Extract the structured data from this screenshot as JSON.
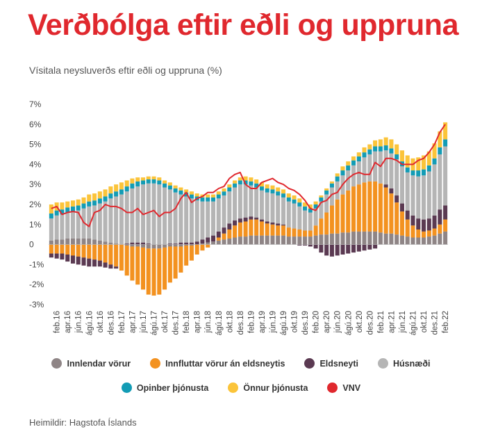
{
  "title": "Verðbólga eftir eðli og uppruna",
  "subtitle": "Vísitala neysluverðs eftir eðli og uppruna (%)",
  "source": "Heimildir: Hagstofa Íslands",
  "legend": [
    {
      "name": "Innlendar vörur",
      "color": "#8f8586"
    },
    {
      "name": "Innfluttar vörur án eldsneytis",
      "color": "#f39220"
    },
    {
      "name": "Eldsneyti",
      "color": "#5b3a52"
    },
    {
      "name": "Húsnæði",
      "color": "#b5b5b5"
    },
    {
      "name": "Opinber þjónusta",
      "color": "#139cb5"
    },
    {
      "name": "Önnur þjónusta",
      "color": "#fbc43a"
    },
    {
      "name": "VNV",
      "color": "#e0282e"
    }
  ],
  "chart_data": {
    "type": "bar",
    "stacked": true,
    "ylim": [
      -3,
      7
    ],
    "yticks": [
      "7%",
      "6%",
      "5%",
      "4%",
      "3%",
      "2%",
      "1%",
      "0",
      "-1%",
      "-2%",
      "-3%"
    ],
    "xtick_labels": [
      "feb.16",
      "apr.16",
      "jún.16",
      "ágú.16",
      "okt.16",
      "des.16",
      "feb.17",
      "apr.17",
      "jún.17",
      "ágú.17",
      "okt.17",
      "des.17",
      "feb.18",
      "apr.18",
      "jún.18",
      "ágú.18",
      "okt.18",
      "des.18",
      "feb.19",
      "apr.19",
      "jún.19",
      "ágú.19",
      "okt.19",
      "des.19",
      "feb.20",
      "apr.20",
      "jún.20",
      "ágú.20",
      "okt.20",
      "des.20",
      "feb.21",
      "apr.21",
      "jún.21",
      "ágú.21",
      "okt.21",
      "des.21",
      "feb.22"
    ],
    "categories": [
      "jan.16",
      "feb.16",
      "mar.16",
      "apr.16",
      "maí.16",
      "jún.16",
      "júl.16",
      "ágú.16",
      "sep.16",
      "okt.16",
      "nóv.16",
      "des.16",
      "jan.17",
      "feb.17",
      "mar.17",
      "apr.17",
      "maí.17",
      "jún.17",
      "júl.17",
      "ágú.17",
      "sep.17",
      "okt.17",
      "nóv.17",
      "des.17",
      "jan.18",
      "feb.18",
      "mar.18",
      "apr.18",
      "maí.18",
      "jún.18",
      "júl.18",
      "ágú.18",
      "sep.18",
      "okt.18",
      "nóv.18",
      "des.18",
      "jan.19",
      "feb.19",
      "mar.19",
      "apr.19",
      "maí.19",
      "jún.19",
      "júl.19",
      "ágú.19",
      "sep.19",
      "okt.19",
      "nóv.19",
      "des.19",
      "jan.20",
      "feb.20",
      "mar.20",
      "apr.20",
      "maí.20",
      "jún.20",
      "júl.20",
      "ágú.20",
      "sep.20",
      "okt.20",
      "nóv.20",
      "des.20",
      "jan.21",
      "feb.21",
      "mar.21",
      "apr.21",
      "maí.21",
      "jún.21",
      "júl.21",
      "ágú.21",
      "sep.21",
      "okt.21",
      "nóv.21",
      "des.21",
      "jan.22",
      "feb.22"
    ],
    "series": [
      {
        "name": "Innlendar vörur",
        "color": "#8f8586",
        "values": [
          0.2,
          0.25,
          0.25,
          0.3,
          0.3,
          0.3,
          0.3,
          0.3,
          0.25,
          0.2,
          0.15,
          0.1,
          0.05,
          0.0,
          -0.05,
          -0.1,
          -0.1,
          -0.15,
          -0.2,
          -0.2,
          -0.2,
          -0.15,
          -0.1,
          -0.1,
          -0.1,
          -0.05,
          -0.05,
          0.0,
          0.05,
          0.1,
          0.15,
          0.2,
          0.25,
          0.3,
          0.35,
          0.4,
          0.4,
          0.45,
          0.45,
          0.45,
          0.45,
          0.45,
          0.45,
          0.45,
          0.4,
          0.4,
          0.4,
          0.4,
          0.4,
          0.45,
          0.5,
          0.5,
          0.55,
          0.55,
          0.6,
          0.6,
          0.65,
          0.65,
          0.65,
          0.65,
          0.65,
          0.6,
          0.55,
          0.55,
          0.5,
          0.45,
          0.4,
          0.35,
          0.35,
          0.35,
          0.4,
          0.45,
          0.55,
          0.65
        ]
      },
      {
        "name": "Innfluttar vörur án eldsneytis",
        "color": "#f39220",
        "values": [
          -0.45,
          -0.45,
          -0.45,
          -0.5,
          -0.55,
          -0.6,
          -0.65,
          -0.7,
          -0.75,
          -0.8,
          -0.9,
          -1.0,
          -1.1,
          -1.3,
          -1.5,
          -1.7,
          -1.9,
          -2.1,
          -2.3,
          -2.35,
          -2.3,
          -2.1,
          -1.8,
          -1.6,
          -1.3,
          -1.0,
          -0.75,
          -0.5,
          -0.3,
          -0.15,
          0.0,
          0.15,
          0.3,
          0.45,
          0.6,
          0.7,
          0.75,
          0.8,
          0.8,
          0.7,
          0.6,
          0.55,
          0.5,
          0.5,
          0.45,
          0.4,
          0.35,
          0.3,
          0.3,
          0.5,
          0.8,
          1.1,
          1.4,
          1.7,
          1.9,
          2.1,
          2.25,
          2.35,
          2.45,
          2.5,
          2.5,
          2.45,
          2.3,
          2.0,
          1.6,
          1.2,
          0.85,
          0.6,
          0.4,
          0.3,
          0.3,
          0.35,
          0.45,
          0.6
        ]
      },
      {
        "name": "Eldsneyti",
        "color": "#5b3a52",
        "values": [
          -0.2,
          -0.25,
          -0.3,
          -0.35,
          -0.4,
          -0.4,
          -0.4,
          -0.4,
          -0.35,
          -0.3,
          -0.25,
          -0.2,
          -0.1,
          0.0,
          0.05,
          0.1,
          0.1,
          0.1,
          0.05,
          0.0,
          0.0,
          0.0,
          0.05,
          0.05,
          0.1,
          0.1,
          0.1,
          0.15,
          0.2,
          0.25,
          0.3,
          0.3,
          0.3,
          0.3,
          0.25,
          0.2,
          0.2,
          0.15,
          0.1,
          0.1,
          0.1,
          0.1,
          0.1,
          0.05,
          0.0,
          0.0,
          -0.05,
          -0.05,
          -0.1,
          -0.2,
          -0.4,
          -0.55,
          -0.6,
          -0.55,
          -0.5,
          -0.45,
          -0.4,
          -0.35,
          -0.3,
          -0.25,
          -0.2,
          0.0,
          0.15,
          0.25,
          0.35,
          0.4,
          0.45,
          0.5,
          0.55,
          0.6,
          0.6,
          0.65,
          0.75,
          0.7
        ]
      },
      {
        "name": "Húsnæði",
        "color": "#b5b5b5",
        "values": [
          1.1,
          1.2,
          1.25,
          1.3,
          1.35,
          1.4,
          1.5,
          1.6,
          1.7,
          1.85,
          2.0,
          2.2,
          2.35,
          2.5,
          2.6,
          2.7,
          2.8,
          2.9,
          3.0,
          3.05,
          3.0,
          2.85,
          2.7,
          2.55,
          2.4,
          2.3,
          2.2,
          2.05,
          1.9,
          1.8,
          1.7,
          1.65,
          1.6,
          1.6,
          1.65,
          1.7,
          1.65,
          1.55,
          1.5,
          1.45,
          1.45,
          1.45,
          1.4,
          1.35,
          1.3,
          1.25,
          1.15,
          1.0,
          0.9,
          0.85,
          0.85,
          0.9,
          0.9,
          0.9,
          0.95,
          1.0,
          1.05,
          1.15,
          1.25,
          1.35,
          1.5,
          1.6,
          1.7,
          1.75,
          1.8,
          1.85,
          1.9,
          2.0,
          2.1,
          2.2,
          2.35,
          2.55,
          2.75,
          2.95
        ]
      },
      {
        "name": "Opinber þjónusta",
        "color": "#139cb5",
        "values": [
          0.25,
          0.25,
          0.25,
          0.25,
          0.25,
          0.25,
          0.25,
          0.25,
          0.25,
          0.25,
          0.25,
          0.25,
          0.25,
          0.25,
          0.25,
          0.25,
          0.25,
          0.2,
          0.2,
          0.2,
          0.2,
          0.2,
          0.2,
          0.2,
          0.2,
          0.2,
          0.2,
          0.2,
          0.2,
          0.2,
          0.2,
          0.2,
          0.2,
          0.2,
          0.2,
          0.2,
          0.2,
          0.2,
          0.2,
          0.2,
          0.2,
          0.2,
          0.2,
          0.2,
          0.2,
          0.2,
          0.2,
          0.2,
          0.2,
          0.2,
          0.2,
          0.2,
          0.2,
          0.25,
          0.25,
          0.25,
          0.25,
          0.25,
          0.25,
          0.25,
          0.25,
          0.25,
          0.25,
          0.25,
          0.25,
          0.25,
          0.25,
          0.25,
          0.3,
          0.3,
          0.3,
          0.3,
          0.35,
          0.35
        ]
      },
      {
        "name": "Önnur þjónusta",
        "color": "#fbc43a",
        "values": [
          0.45,
          0.4,
          0.35,
          0.3,
          0.3,
          0.3,
          0.3,
          0.35,
          0.35,
          0.35,
          0.35,
          0.35,
          0.35,
          0.35,
          0.3,
          0.25,
          0.2,
          0.15,
          0.15,
          0.15,
          0.15,
          0.15,
          0.15,
          0.15,
          0.15,
          0.15,
          0.15,
          0.15,
          0.15,
          0.15,
          0.15,
          0.15,
          0.15,
          0.15,
          0.15,
          0.15,
          0.2,
          0.2,
          0.2,
          0.2,
          0.2,
          0.2,
          0.2,
          0.2,
          0.2,
          0.2,
          0.2,
          0.2,
          0.2,
          0.15,
          0.1,
          0.1,
          0.1,
          0.15,
          0.2,
          0.2,
          0.2,
          0.2,
          0.25,
          0.25,
          0.3,
          0.35,
          0.4,
          0.45,
          0.5,
          0.55,
          0.6,
          0.6,
          0.65,
          0.7,
          0.7,
          0.75,
          0.8,
          0.85
        ]
      }
    ],
    "line": {
      "name": "VNV",
      "color": "#e0282e",
      "values": [
        1.8,
        1.9,
        1.5,
        1.6,
        1.65,
        1.6,
        1.1,
        0.9,
        1.6,
        1.7,
        2.0,
        1.9,
        1.9,
        1.8,
        1.6,
        1.6,
        1.8,
        1.5,
        1.6,
        1.7,
        1.4,
        1.6,
        1.6,
        1.8,
        2.3,
        2.6,
        2.1,
        2.3,
        2.4,
        2.6,
        2.6,
        2.8,
        2.9,
        3.3,
        3.5,
        3.6,
        3.0,
        2.8,
        2.8,
        3.1,
        3.2,
        3.3,
        3.1,
        3.0,
        2.8,
        2.7,
        2.5,
        2.2,
        1.8,
        1.7,
        2.1,
        2.2,
        2.5,
        2.6,
        3.0,
        3.3,
        3.5,
        3.6,
        3.5,
        3.5,
        4.1,
        3.9,
        4.3,
        4.3,
        4.2,
        4.0,
        4.0,
        4.0,
        4.2,
        4.3,
        4.6,
        5.0,
        5.6,
        6.0
      ]
    }
  }
}
